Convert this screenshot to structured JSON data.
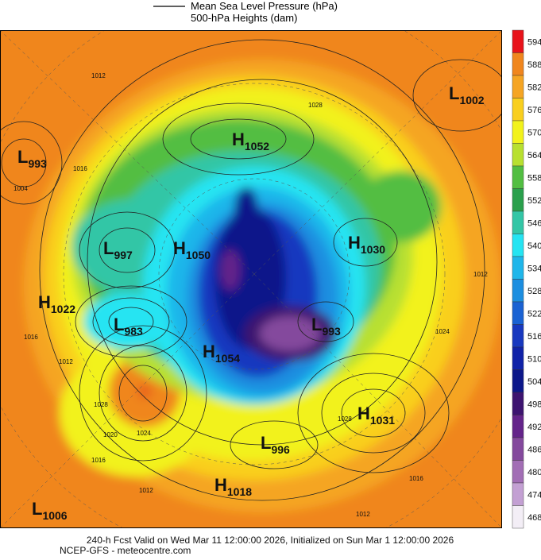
{
  "header": {
    "legend_line1": "Mean Sea Level Pressure (hPa)",
    "legend_line2": "500-hPa Heights (dam)"
  },
  "colorbar": [
    {
      "value": 594,
      "color": "#e8131b"
    },
    {
      "value": 588,
      "color": "#f0861e"
    },
    {
      "value": 582,
      "color": "#f5a524"
    },
    {
      "value": 576,
      "color": "#f9cf1e"
    },
    {
      "value": 570,
      "color": "#f2f21c"
    },
    {
      "value": 564,
      "color": "#b8e030"
    },
    {
      "value": 558,
      "color": "#52be42"
    },
    {
      "value": 552,
      "color": "#2aa04c"
    },
    {
      "value": 546,
      "color": "#33c6a6"
    },
    {
      "value": 540,
      "color": "#25e4f2"
    },
    {
      "value": 534,
      "color": "#1fb6ea"
    },
    {
      "value": 528,
      "color": "#1c8ee0"
    },
    {
      "value": 522,
      "color": "#1a62d3"
    },
    {
      "value": 516,
      "color": "#1838bf"
    },
    {
      "value": 510,
      "color": "#1022a8"
    },
    {
      "value": 504,
      "color": "#0c178a"
    },
    {
      "value": 498,
      "color": "#3d1470"
    },
    {
      "value": 492,
      "color": "#64248a"
    },
    {
      "value": 486,
      "color": "#84499d"
    },
    {
      "value": 480,
      "color": "#a26eb5"
    },
    {
      "value": 474,
      "color": "#c3a0d3"
    },
    {
      "value": 468,
      "color": "#f3eef6"
    }
  ],
  "pressure_centers": [
    {
      "letter": "L",
      "value": 1002
    },
    {
      "letter": "L",
      "value": 993
    },
    {
      "letter": "H",
      "value": 1052
    },
    {
      "letter": "L",
      "value": 997
    },
    {
      "letter": "H",
      "value": 1050
    },
    {
      "letter": "H",
      "value": 1030
    },
    {
      "letter": "H",
      "value": 1022
    },
    {
      "letter": "L",
      "value": 983
    },
    {
      "letter": "L",
      "value": 993
    },
    {
      "letter": "H",
      "value": 1054
    },
    {
      "letter": "H",
      "value": 1031
    },
    {
      "letter": "L",
      "value": 996
    },
    {
      "letter": "H",
      "value": 1018
    },
    {
      "letter": "L",
      "value": 1006
    }
  ],
  "contour_labels": [
    1012,
    1016,
    1004,
    1016,
    1012,
    1028,
    1020,
    1024,
    1016,
    1012,
    1028,
    1016,
    1024,
    1012,
    1028,
    1012
  ],
  "footer": {
    "line1": "240-h Fcst Valid on Wed Mar 11 12:00:00 2026, Initialized on Sun Mar  1 12:00:00 2026",
    "line2": "NCEP-GFS - meteocentre.com"
  }
}
